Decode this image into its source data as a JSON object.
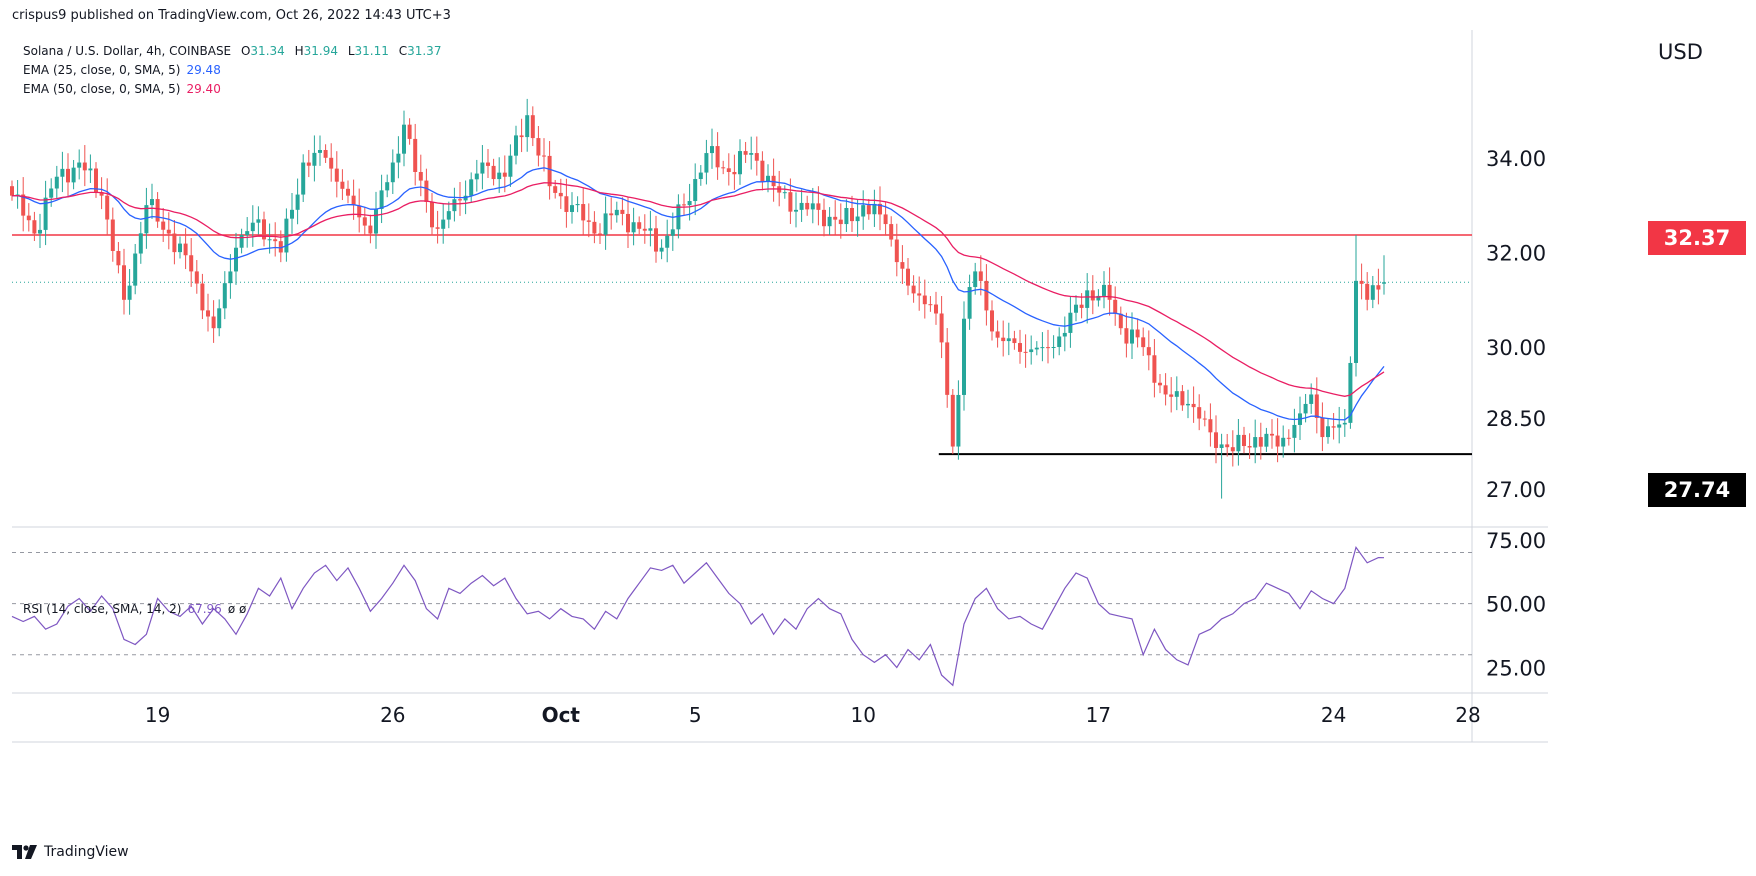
{
  "header": {
    "publish_text": "crispus9 published on TradingView.com, Oct 26, 2022 14:43 UTC+3"
  },
  "legend": {
    "symbol": "Solana / U.S. Dollar, 4h, COINBASE",
    "ohlc": {
      "o_label": "O",
      "o": "31.34",
      "h_label": "H",
      "h": "31.94",
      "l_label": "L",
      "l": "31.11",
      "c_label": "C",
      "c": "31.37"
    },
    "ema1": {
      "label": "EMA (25, close, 0, SMA, 5)",
      "value": "29.48",
      "color": "#2962ff"
    },
    "ema2": {
      "label": "EMA (50, close, 0, SMA, 5)",
      "value": "29.40",
      "color": "#e91e63"
    }
  },
  "rsi_legend": {
    "label": "RSI (14, close, SMA, 14, 2)",
    "value": "67.96",
    "extra": "ø ø"
  },
  "price_axis": {
    "currency": "USD"
  },
  "price_tags": {
    "resistance": "32.37",
    "support": "27.74"
  },
  "footer": {
    "brand": "TradingView"
  },
  "colors": {
    "up": "#26a69a",
    "down": "#ef5350",
    "ema25": "#2962ff",
    "ema50": "#e91e63",
    "rsi": "#7e57c2",
    "resistance": "#f23645",
    "support": "#000000"
  },
  "chart_data": [
    {
      "type": "candlestick",
      "title": "Solana / U.S. Dollar, 4h, COINBASE",
      "ylabel": "USD",
      "ylim": [
        26.2,
        36.7
      ],
      "y_ticks": [
        27.0,
        28.5,
        30.0,
        32.0,
        34.0
      ],
      "y_tick_labels": [
        "27.00",
        "28.50",
        "30.00",
        "32.00",
        "34.00"
      ],
      "x_ticks": [
        {
          "label": "19",
          "bar": 26
        },
        {
          "label": "26",
          "bar": 68
        },
        {
          "label": "Oct",
          "bar": 98
        },
        {
          "label": "5",
          "bar": 122
        },
        {
          "label": "10",
          "bar": 152
        },
        {
          "label": "17",
          "bar": 194
        },
        {
          "label": "24",
          "bar": 236
        },
        {
          "label": "28",
          "bar": 260
        }
      ],
      "bar_count": 246,
      "key_closes": [
        [
          0,
          33.2
        ],
        [
          4,
          32.4
        ],
        [
          8,
          33.6
        ],
        [
          12,
          33.9
        ],
        [
          16,
          33.2
        ],
        [
          20,
          31.0
        ],
        [
          24,
          33.0
        ],
        [
          28,
          32.4
        ],
        [
          32,
          31.6
        ],
        [
          36,
          30.4
        ],
        [
          40,
          32.1
        ],
        [
          44,
          32.7
        ],
        [
          48,
          32.0
        ],
        [
          52,
          33.9
        ],
        [
          56,
          34.0
        ],
        [
          60,
          33.2
        ],
        [
          64,
          32.4
        ],
        [
          68,
          33.9
        ],
        [
          70,
          34.7
        ],
        [
          72,
          33.7
        ],
        [
          76,
          32.5
        ],
        [
          80,
          33.1
        ],
        [
          84,
          33.9
        ],
        [
          88,
          33.6
        ],
        [
          92,
          34.9
        ],
        [
          96,
          33.4
        ],
        [
          100,
          33.0
        ],
        [
          104,
          32.4
        ],
        [
          108,
          32.9
        ],
        [
          112,
          32.5
        ],
        [
          116,
          32.1
        ],
        [
          120,
          33.0
        ],
        [
          124,
          34.1
        ],
        [
          128,
          33.7
        ],
        [
          132,
          34.1
        ],
        [
          136,
          33.4
        ],
        [
          140,
          32.9
        ],
        [
          144,
          32.9
        ],
        [
          148,
          32.6
        ],
        [
          152,
          33.0
        ],
        [
          156,
          32.6
        ],
        [
          160,
          31.3
        ],
        [
          164,
          30.9
        ],
        [
          166,
          30.1
        ],
        [
          168,
          27.9
        ],
        [
          170,
          30.6
        ],
        [
          172,
          31.6
        ],
        [
          176,
          30.2
        ],
        [
          180,
          29.9
        ],
        [
          184,
          30.0
        ],
        [
          188,
          30.3
        ],
        [
          192,
          31.2
        ],
        [
          196,
          31.0
        ],
        [
          198,
          30.4
        ],
        [
          202,
          30.0
        ],
        [
          206,
          29.0
        ],
        [
          210,
          28.8
        ],
        [
          214,
          28.2
        ],
        [
          218,
          27.8
        ],
        [
          222,
          28.1
        ],
        [
          226,
          27.9
        ],
        [
          230,
          28.6
        ],
        [
          232,
          29.0
        ],
        [
          234,
          28.1
        ],
        [
          236,
          28.3
        ],
        [
          238,
          28.4
        ],
        [
          240,
          31.4
        ],
        [
          242,
          31.0
        ],
        [
          245,
          31.37
        ]
      ],
      "last_ohlc": {
        "open": 31.34,
        "high": 31.94,
        "low": 31.11,
        "close": 31.37
      },
      "marked_points": [
        {
          "bar": 168,
          "low": 27.74
        },
        {
          "bar": 216,
          "low": 26.8
        },
        {
          "bar": 240,
          "high": 32.37
        }
      ],
      "series": [
        {
          "name": "EMA (25, close, 0, SMA, 5)",
          "last": 29.48
        },
        {
          "name": "EMA (50, close, 0, SMA, 5)",
          "last": 29.4
        }
      ],
      "hlines": [
        {
          "value": 32.37,
          "label": "32.37",
          "color": "#f23645"
        },
        {
          "value": 27.74,
          "label": "27.74",
          "color": "#000000",
          "from_bar": 168
        }
      ],
      "last_price_line": 31.37
    },
    {
      "type": "line",
      "title": "RSI (14, close, SMA, 14, 2)",
      "ylim": [
        15,
        80
      ],
      "y_ticks": [
        25,
        50,
        75
      ],
      "y_tick_labels": [
        "25.00",
        "50.00",
        "75.00"
      ],
      "bands": [
        70,
        50,
        30
      ],
      "series": [
        {
          "name": "RSI (14, close, SMA, 14, 2)",
          "last": 67.96,
          "points": [
            [
              0,
              45
            ],
            [
              2,
              43
            ],
            [
              4,
              45
            ],
            [
              6,
              40
            ],
            [
              8,
              42
            ],
            [
              10,
              49
            ],
            [
              12,
              52
            ],
            [
              14,
              47
            ],
            [
              16,
              53
            ],
            [
              18,
              48
            ],
            [
              20,
              36
            ],
            [
              22,
              34
            ],
            [
              24,
              38
            ],
            [
              26,
              52
            ],
            [
              28,
              47
            ],
            [
              30,
              45
            ],
            [
              32,
              49
            ],
            [
              34,
              42
            ],
            [
              36,
              48
            ],
            [
              38,
              44
            ],
            [
              40,
              38
            ],
            [
              42,
              46
            ],
            [
              44,
              56
            ],
            [
              46,
              53
            ],
            [
              48,
              60
            ],
            [
              50,
              48
            ],
            [
              52,
              56
            ],
            [
              54,
              62
            ],
            [
              56,
              65
            ],
            [
              58,
              59
            ],
            [
              60,
              64
            ],
            [
              62,
              56
            ],
            [
              64,
              47
            ],
            [
              66,
              52
            ],
            [
              68,
              58
            ],
            [
              70,
              65
            ],
            [
              72,
              59
            ],
            [
              74,
              48
            ],
            [
              76,
              44
            ],
            [
              78,
              56
            ],
            [
              80,
              54
            ],
            [
              82,
              58
            ],
            [
              84,
              61
            ],
            [
              86,
              57
            ],
            [
              88,
              60
            ],
            [
              90,
              52
            ],
            [
              92,
              46
            ],
            [
              94,
              47
            ],
            [
              96,
              44
            ],
            [
              98,
              48
            ],
            [
              100,
              45
            ],
            [
              102,
              44
            ],
            [
              104,
              40
            ],
            [
              106,
              47
            ],
            [
              108,
              44
            ],
            [
              110,
              52
            ],
            [
              112,
              58
            ],
            [
              114,
              64
            ],
            [
              116,
              63
            ],
            [
              118,
              65
            ],
            [
              120,
              58
            ],
            [
              122,
              62
            ],
            [
              124,
              66
            ],
            [
              126,
              60
            ],
            [
              128,
              54
            ],
            [
              130,
              50
            ],
            [
              132,
              42
            ],
            [
              134,
              46
            ],
            [
              136,
              38
            ],
            [
              138,
              44
            ],
            [
              140,
              40
            ],
            [
              142,
              48
            ],
            [
              144,
              52
            ],
            [
              146,
              48
            ],
            [
              148,
              46
            ],
            [
              150,
              36
            ],
            [
              152,
              30
            ],
            [
              154,
              27
            ],
            [
              156,
              30
            ],
            [
              158,
              25
            ],
            [
              160,
              32
            ],
            [
              162,
              28
            ],
            [
              164,
              34
            ],
            [
              166,
              22
            ],
            [
              168,
              18
            ],
            [
              170,
              42
            ],
            [
              172,
              52
            ],
            [
              174,
              56
            ],
            [
              176,
              48
            ],
            [
              178,
              44
            ],
            [
              180,
              45
            ],
            [
              182,
              42
            ],
            [
              184,
              40
            ],
            [
              186,
              48
            ],
            [
              188,
              56
            ],
            [
              190,
              62
            ],
            [
              192,
              60
            ],
            [
              194,
              50
            ],
            [
              196,
              46
            ],
            [
              198,
              45
            ],
            [
              200,
              44
            ],
            [
              202,
              30
            ],
            [
              204,
              40
            ],
            [
              206,
              32
            ],
            [
              208,
              28
            ],
            [
              210,
              26
            ],
            [
              212,
              38
            ],
            [
              214,
              40
            ],
            [
              216,
              44
            ],
            [
              218,
              46
            ],
            [
              220,
              50
            ],
            [
              222,
              52
            ],
            [
              224,
              58
            ],
            [
              226,
              56
            ],
            [
              228,
              54
            ],
            [
              230,
              48
            ],
            [
              232,
              55
            ],
            [
              234,
              52
            ],
            [
              236,
              50
            ],
            [
              238,
              56
            ],
            [
              240,
              72
            ],
            [
              242,
              66
            ],
            [
              244,
              68
            ],
            [
              245,
              67.96
            ]
          ]
        }
      ]
    }
  ]
}
